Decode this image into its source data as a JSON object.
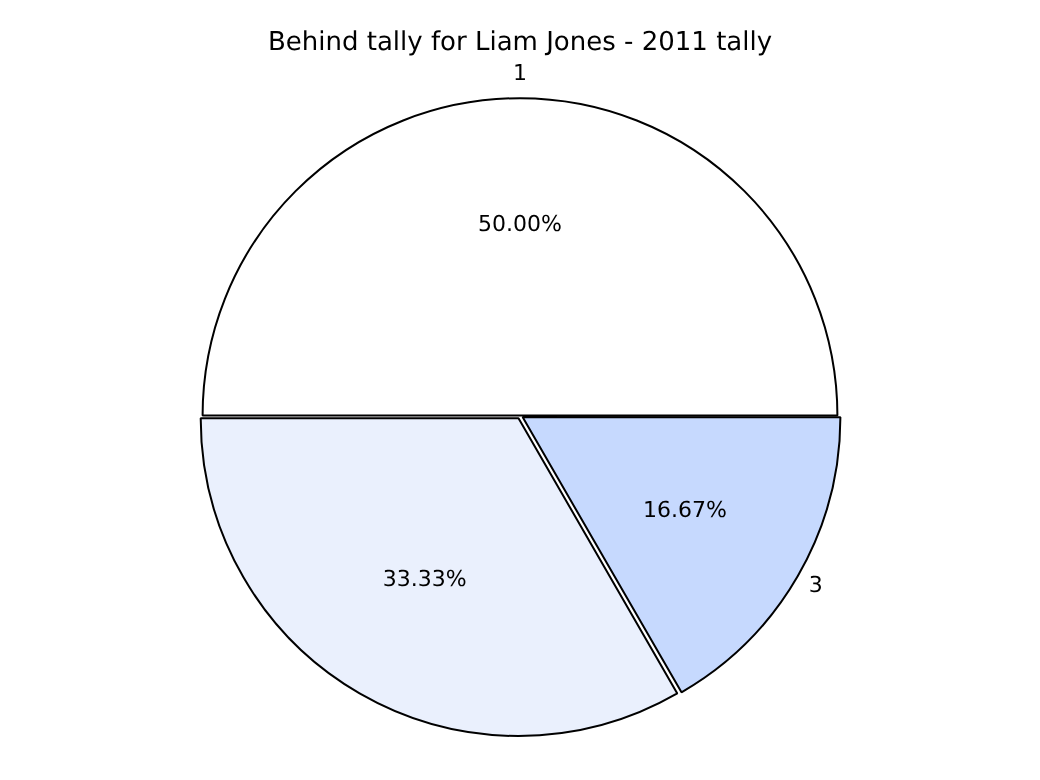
{
  "chart_data": {
    "type": "pie",
    "title": "Behind tally for Liam Jones - 2011 tally",
    "categories": [
      "1",
      null,
      "3"
    ],
    "values": [
      50,
      33.33,
      16.67
    ],
    "value_labels": [
      "50.00%",
      "33.33%",
      "16.67%"
    ],
    "colors": [
      "#ffffff",
      "#eaf0fd",
      "#c6d9fe"
    ],
    "legend": false
  }
}
